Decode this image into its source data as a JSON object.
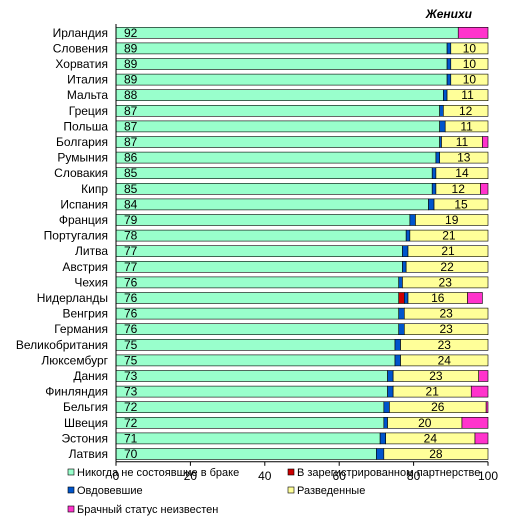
{
  "chart_data": {
    "type": "bar",
    "stacked": true,
    "orientation": "horizontal",
    "title": "Женихи",
    "xlim": [
      0,
      100
    ],
    "x_ticks": [
      0,
      20,
      40,
      60,
      80,
      100
    ],
    "grid": false,
    "legend_position": "bottom",
    "categories": [
      "Ирландия",
      "Словения",
      "Хорватия",
      "Италия",
      "Мальта",
      "Греция",
      "Польша",
      "Болгария",
      "Румыния",
      "Словакия",
      "Кипр",
      "Испания",
      "Франция",
      "Португалия",
      "Литва",
      "Австрия",
      "Чехия",
      "Нидерланды",
      "Венгрия",
      "Германия",
      "Великобритания",
      "Люксембург",
      "Дания",
      "Финляндия",
      "Бельгия",
      "Швеция",
      "Эстония",
      "Латвия"
    ],
    "series": [
      {
        "name": "Никогда  не состоявшие в браке",
        "color": "#99ffcc",
        "values": [
          92,
          89,
          89,
          89,
          88,
          87,
          87,
          87,
          86,
          85,
          85,
          84,
          79,
          78,
          77,
          77,
          76,
          76,
          76,
          76,
          75,
          75,
          73,
          73,
          72,
          72,
          71,
          70
        ],
        "labels": [
          92,
          89,
          89,
          89,
          88,
          87,
          87,
          87,
          86,
          85,
          85,
          84,
          79,
          78,
          77,
          77,
          76,
          76,
          76,
          76,
          75,
          75,
          73,
          73,
          72,
          72,
          71,
          70
        ]
      },
      {
        "name": "В зарегистрированном партнерстве",
        "color": "#cc0000",
        "values": [
          0,
          0,
          0,
          0,
          0,
          0,
          0,
          0,
          0,
          0,
          0,
          0,
          0,
          0,
          0,
          0,
          0,
          1.5,
          0,
          0,
          0,
          0,
          0,
          0,
          0,
          0,
          0,
          0
        ],
        "labels": []
      },
      {
        "name": "Овдовевшие",
        "color": "#0055cc",
        "values": [
          0,
          1,
          1,
          1,
          1,
          1,
          1.5,
          0.5,
          1,
          1,
          1,
          1.5,
          1.5,
          1,
          1.5,
          1,
          1,
          1,
          1.5,
          1.5,
          1.5,
          1.5,
          1.5,
          1.5,
          1.5,
          1,
          1.5,
          2
        ],
        "labels": []
      },
      {
        "name": "Разведенные",
        "color": "#ffff99",
        "values": [
          0,
          10,
          10,
          10,
          11,
          12,
          11.5,
          11,
          13,
          14,
          12,
          14.5,
          19.5,
          21,
          21.5,
          22,
          23,
          16,
          22.5,
          22.5,
          23.5,
          23.5,
          23,
          21,
          26,
          20,
          24,
          28
        ],
        "labels": [
          null,
          10,
          10,
          10,
          11,
          12,
          11,
          11,
          13,
          14,
          12,
          15,
          19,
          21,
          21,
          22,
          23,
          16,
          23,
          23,
          23,
          24,
          23,
          21,
          26,
          20,
          24,
          28
        ]
      },
      {
        "name": "Брачный статус неизвестен",
        "color": "#ff33cc",
        "values": [
          8,
          0,
          0,
          0,
          0,
          0,
          0,
          1.5,
          0,
          0,
          2,
          0,
          0,
          0,
          0,
          0,
          0,
          4,
          0,
          0,
          0,
          0,
          2.5,
          4.5,
          0.5,
          7,
          3.5,
          0
        ],
        "labels": []
      }
    ]
  }
}
